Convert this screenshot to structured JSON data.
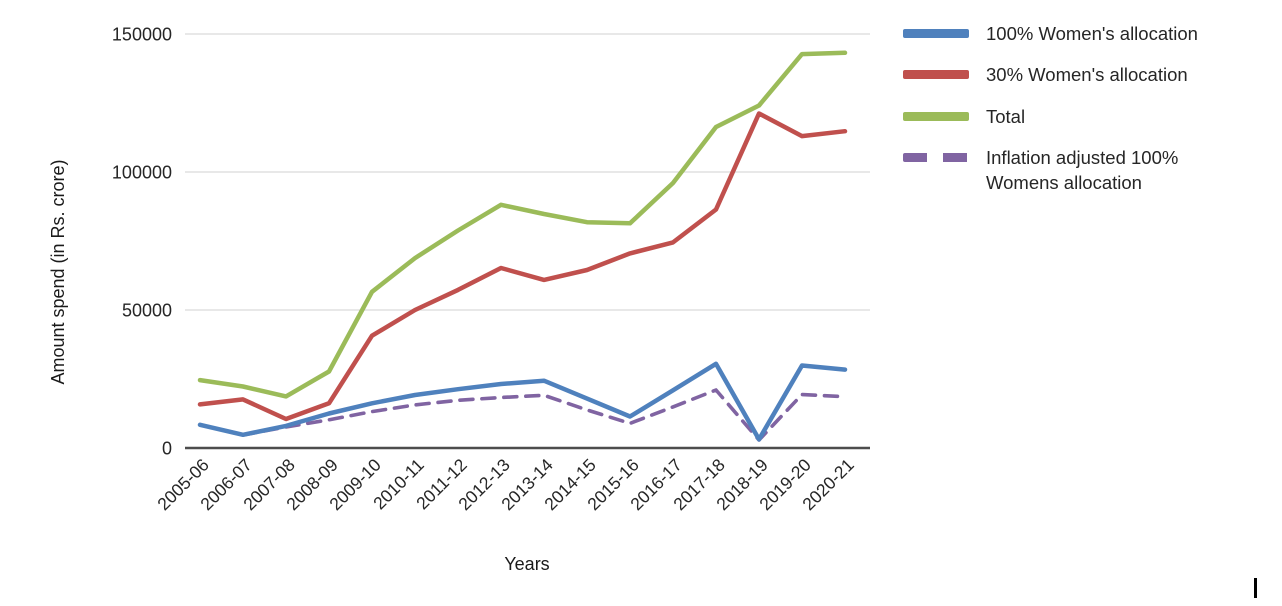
{
  "chart_data": {
    "type": "line",
    "title": "",
    "xlabel": "Years",
    "ylabel": "Amount spend (in Rs. crore)",
    "categories": [
      "2005-06",
      "2006-07",
      "2007-08",
      "2008-09",
      "2009-10",
      "2010-11",
      "2011-12",
      "2012-13",
      "2013-14",
      "2014-15",
      "2015-16",
      "2016-17",
      "2017-18",
      "2018-19",
      "2019-20",
      "2020-21"
    ],
    "yticks": [
      0,
      50000,
      100000,
      150000
    ],
    "ylim": [
      0,
      150000
    ],
    "grid": "horizontal",
    "legend_position": "top-right",
    "series": [
      {
        "name": "100% Women's allocation",
        "color": "#4F81BD",
        "style": "solid",
        "values": [
          8400,
          4800,
          8000,
          12500,
          16200,
          19200,
          21300,
          23200,
          24400,
          17900,
          11400,
          20900,
          30500,
          3100,
          29900,
          28400
        ]
      },
      {
        "name": "30% Women's allocation",
        "color": "#C0504D",
        "style": "solid",
        "values": [
          15800,
          17600,
          10500,
          16200,
          40700,
          50000,
          57300,
          65200,
          60900,
          64500,
          70500,
          74500,
          86400,
          121200,
          113000,
          114800
        ]
      },
      {
        "name": "Total",
        "color": "#9BBB59",
        "style": "solid",
        "values": [
          24600,
          22300,
          18700,
          27700,
          56600,
          68800,
          78800,
          88100,
          84800,
          81800,
          81400,
          96000,
          116300,
          124100,
          142700,
          143200
        ]
      },
      {
        "name": "Inflation adjusted 100% Womens allocation",
        "color": "#8064A2",
        "style": "dashed",
        "values": [
          8400,
          4700,
          7600,
          10200,
          13200,
          15600,
          17300,
          18300,
          19100,
          13800,
          8900,
          14900,
          21000,
          2900,
          19400,
          18600
        ]
      }
    ],
    "axis_text_color": "#262626",
    "gridline_color": "#D9D9D9",
    "axis_line_color": "#4D4D4D"
  }
}
